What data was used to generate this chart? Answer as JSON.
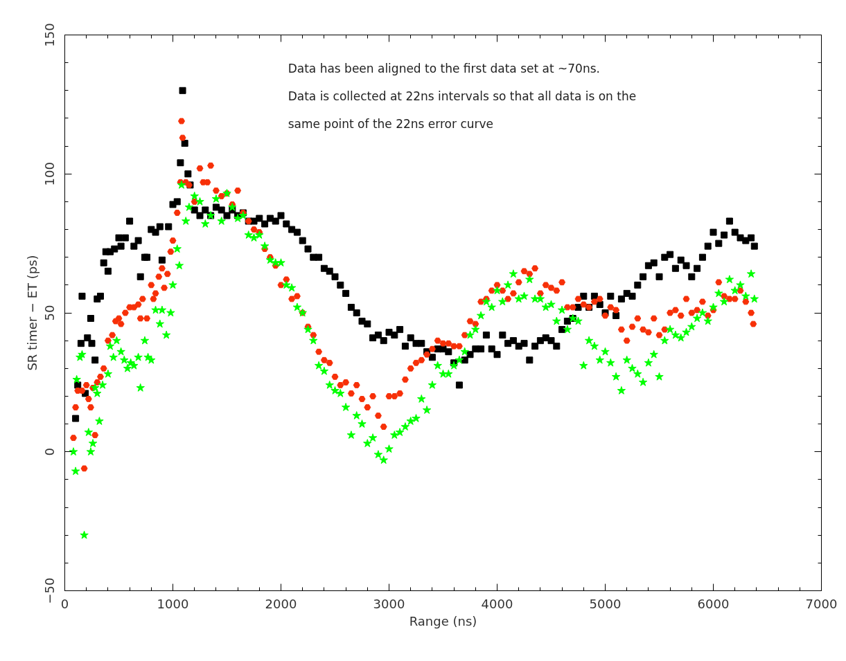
{
  "chart_data": {
    "type": "scatter",
    "xlabel": "Range (ns)",
    "ylabel": "SR timer − ET (ps)",
    "annotations": [
      "Data has been aligned to the first data set at ~70ns.",
      "Data is collected at 22ns intervals so that all data is on the",
      "same point of the 22ns error curve"
    ],
    "xlim": [
      0,
      7000
    ],
    "ylim": [
      -50,
      150
    ],
    "xticks": [
      0,
      1000,
      2000,
      3000,
      4000,
      5000,
      6000,
      7000
    ],
    "yticks": [
      -50,
      0,
      50,
      100,
      150
    ],
    "grid": false,
    "series": [
      {
        "color": "#000000",
        "marker": "square",
        "x": [
          100,
          120,
          150,
          160,
          190,
          210,
          240,
          250,
          280,
          300,
          330,
          360,
          380,
          400,
          420,
          460,
          500,
          520,
          560,
          600,
          640,
          680,
          700,
          740,
          760,
          800,
          840,
          880,
          900,
          960,
          1000,
          1040,
          1070,
          1090,
          1110,
          1140,
          1160,
          1200,
          1250,
          1300,
          1350,
          1400,
          1450,
          1500,
          1550,
          1600,
          1650,
          1700,
          1750,
          1800,
          1850,
          1900,
          1950,
          2000,
          2050,
          2100,
          2150,
          2200,
          2250,
          2300,
          2350,
          2400,
          2450,
          2500,
          2550,
          2600,
          2650,
          2700,
          2750,
          2800,
          2850,
          2900,
          2950,
          3000,
          3050,
          3100,
          3150,
          3200,
          3250,
          3300,
          3350,
          3400,
          3450,
          3500,
          3550,
          3600,
          3650,
          3700,
          3750,
          3800,
          3850,
          3900,
          3950,
          4000,
          4050,
          4100,
          4150,
          4200,
          4250,
          4300,
          4350,
          4400,
          4450,
          4500,
          4550,
          4600,
          4650,
          4700,
          4750,
          4800,
          4850,
          4900,
          4950,
          5000,
          5050,
          5100,
          5150,
          5200,
          5250,
          5300,
          5350,
          5400,
          5450,
          5500,
          5550,
          5600,
          5650,
          5700,
          5750,
          5800,
          5850,
          5900,
          5950,
          6000,
          6050,
          6100,
          6150,
          6200,
          6250,
          6300,
          6350,
          6380
        ],
        "values": [
          12,
          24,
          39,
          56,
          21,
          41,
          48,
          39,
          33,
          55,
          56,
          68,
          72,
          65,
          72,
          73,
          77,
          74,
          77,
          83,
          74,
          76,
          63,
          70,
          70,
          80,
          79,
          81,
          69,
          81,
          89,
          90,
          104,
          130,
          111,
          100,
          96,
          87,
          85,
          87,
          85,
          88,
          87,
          85,
          87,
          85,
          86,
          83,
          83,
          84,
          82,
          84,
          83,
          85,
          82,
          80,
          79,
          76,
          73,
          70,
          70,
          66,
          65,
          63,
          60,
          57,
          52,
          50,
          47,
          46,
          41,
          42,
          40,
          43,
          42,
          44,
          38,
          41,
          39,
          39,
          36,
          34,
          37,
          37,
          36,
          32,
          24,
          33,
          35,
          37,
          37,
          42,
          37,
          35,
          42,
          39,
          40,
          38,
          39,
          33,
          38,
          40,
          41,
          40,
          38,
          44,
          47,
          48,
          52,
          56,
          52,
          56,
          53,
          50,
          56,
          49,
          55,
          57,
          56,
          60,
          63,
          67,
          68,
          63,
          70,
          71,
          66,
          69,
          67,
          63,
          66,
          70,
          74,
          79,
          75,
          78,
          83,
          79,
          77,
          76,
          77,
          74
        ]
      },
      {
        "color": "#f73008",
        "marker": "circle",
        "x": [
          80,
          100,
          120,
          160,
          180,
          200,
          220,
          240,
          260,
          280,
          300,
          330,
          360,
          400,
          440,
          470,
          500,
          520,
          560,
          600,
          640,
          680,
          700,
          720,
          760,
          800,
          820,
          840,
          870,
          900,
          920,
          950,
          980,
          1000,
          1040,
          1070,
          1080,
          1090,
          1120,
          1150,
          1200,
          1250,
          1280,
          1320,
          1350,
          1400,
          1450,
          1500,
          1550,
          1600,
          1650,
          1700,
          1750,
          1800,
          1850,
          1900,
          1950,
          2000,
          2050,
          2100,
          2150,
          2200,
          2250,
          2300,
          2350,
          2400,
          2450,
          2500,
          2550,
          2600,
          2650,
          2700,
          2750,
          2800,
          2850,
          2900,
          2950,
          3000,
          3050,
          3100,
          3150,
          3200,
          3250,
          3300,
          3350,
          3400,
          3450,
          3500,
          3550,
          3600,
          3650,
          3700,
          3750,
          3800,
          3850,
          3900,
          3950,
          4000,
          4050,
          4100,
          4150,
          4200,
          4250,
          4300,
          4350,
          4400,
          4450,
          4500,
          4550,
          4600,
          4650,
          4700,
          4750,
          4800,
          4850,
          4900,
          4950,
          5000,
          5050,
          5100,
          5150,
          5200,
          5250,
          5300,
          5350,
          5400,
          5450,
          5500,
          5550,
          5600,
          5650,
          5700,
          5750,
          5800,
          5850,
          5900,
          5950,
          6000,
          6050,
          6100,
          6150,
          6200,
          6250,
          6300,
          6350,
          6370
        ],
        "values": [
          5,
          16,
          22,
          22,
          -6,
          24,
          19,
          16,
          23,
          6,
          25,
          27,
          30,
          40,
          42,
          47,
          48,
          46,
          50,
          52,
          52,
          53,
          48,
          55,
          48,
          60,
          55,
          57,
          63,
          66,
          59,
          64,
          72,
          76,
          86,
          97,
          119,
          113,
          97,
          96,
          90,
          102,
          97,
          97,
          103,
          94,
          92,
          93,
          89,
          94,
          86,
          83,
          80,
          79,
          73,
          70,
          67,
          60,
          62,
          55,
          56,
          50,
          45,
          42,
          36,
          33,
          32,
          27,
          24,
          25,
          21,
          24,
          19,
          16,
          20,
          13,
          9,
          20,
          20,
          21,
          26,
          30,
          32,
          33,
          35,
          37,
          40,
          39,
          39,
          38,
          38,
          42,
          47,
          46,
          54,
          55,
          58,
          60,
          58,
          55,
          57,
          61,
          65,
          64,
          66,
          57,
          60,
          59,
          58,
          61,
          52,
          52,
          55,
          53,
          52,
          54,
          55,
          49,
          52,
          51,
          44,
          40,
          45,
          48,
          44,
          43,
          48,
          42,
          44,
          50,
          51,
          49,
          55,
          50,
          51,
          54,
          49,
          51,
          61,
          56,
          55,
          55,
          58,
          54,
          50,
          46
        ]
      },
      {
        "color": "#00ff00",
        "marker": "star",
        "x": [
          80,
          100,
          110,
          140,
          160,
          180,
          220,
          240,
          260,
          280,
          300,
          320,
          350,
          400,
          420,
          450,
          480,
          520,
          550,
          580,
          610,
          640,
          680,
          700,
          740,
          770,
          800,
          840,
          880,
          900,
          940,
          980,
          1000,
          1040,
          1060,
          1080,
          1120,
          1150,
          1200,
          1250,
          1300,
          1350,
          1400,
          1450,
          1500,
          1550,
          1600,
          1650,
          1700,
          1750,
          1800,
          1850,
          1900,
          1950,
          2000,
          2050,
          2100,
          2150,
          2200,
          2250,
          2300,
          2350,
          2400,
          2450,
          2500,
          2550,
          2600,
          2650,
          2700,
          2750,
          2800,
          2850,
          2900,
          2950,
          3000,
          3050,
          3100,
          3150,
          3200,
          3250,
          3300,
          3350,
          3400,
          3450,
          3500,
          3550,
          3600,
          3650,
          3700,
          3750,
          3800,
          3850,
          3900,
          3950,
          4000,
          4050,
          4100,
          4150,
          4200,
          4250,
          4300,
          4350,
          4400,
          4450,
          4500,
          4550,
          4600,
          4650,
          4700,
          4750,
          4800,
          4850,
          4900,
          4950,
          5000,
          5050,
          5100,
          5150,
          5200,
          5250,
          5300,
          5350,
          5400,
          5450,
          5500,
          5550,
          5600,
          5650,
          5700,
          5750,
          5800,
          5850,
          5900,
          5950,
          6000,
          6050,
          6100,
          6150,
          6200,
          6250,
          6300,
          6350,
          6380
        ],
        "values": [
          0,
          -7,
          26,
          34,
          35,
          -30,
          7,
          0,
          3,
          23,
          21,
          11,
          24,
          28,
          38,
          34,
          40,
          36,
          33,
          30,
          32,
          31,
          34,
          23,
          40,
          34,
          33,
          51,
          46,
          51,
          42,
          50,
          60,
          73,
          67,
          96,
          83,
          88,
          92,
          90,
          82,
          85,
          91,
          83,
          93,
          88,
          84,
          85,
          78,
          77,
          78,
          74,
          69,
          68,
          68,
          60,
          59,
          52,
          50,
          44,
          40,
          31,
          29,
          24,
          22,
          21,
          16,
          6,
          13,
          10,
          3,
          5,
          -1,
          -3,
          1,
          6,
          7,
          9,
          11,
          12,
          19,
          15,
          24,
          31,
          28,
          28,
          31,
          33,
          36,
          42,
          44,
          49,
          54,
          52,
          58,
          54,
          60,
          64,
          55,
          56,
          62,
          55,
          55,
          52,
          53,
          47,
          51,
          44,
          48,
          47,
          31,
          40,
          38,
          33,
          36,
          32,
          27,
          22,
          33,
          30,
          28,
          25,
          32,
          35,
          27,
          40,
          44,
          42,
          41,
          43,
          45,
          48,
          50,
          47,
          52,
          57,
          54,
          62,
          58,
          60,
          56,
          64,
          55
        ]
      }
    ]
  }
}
